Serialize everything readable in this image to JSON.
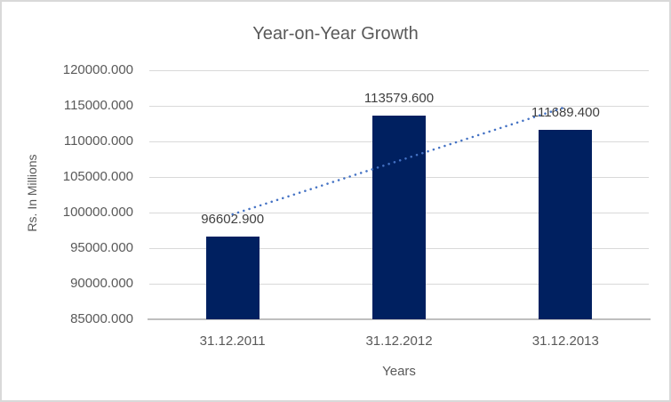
{
  "chart_data": {
    "type": "bar",
    "title": "Year-on-Year Growth",
    "xlabel": "Years",
    "ylabel": "Rs. In Millions",
    "categories": [
      "31.12.2011",
      "31.12.2012",
      "31.12.2013"
    ],
    "series": [
      {
        "name": "Rs. In Millions",
        "values": [
          96602.9,
          113579.6,
          111689.4
        ],
        "data_labels": [
          "96602.900",
          "113579.600",
          "111689.400"
        ]
      }
    ],
    "ylim": [
      85000,
      120000
    ],
    "ytick_step": 5000,
    "ytick_labels": [
      "120000.000",
      "115000.000",
      "110000.000",
      "105000.000",
      "100000.000",
      "95000.000",
      "90000.000",
      "85000.000"
    ],
    "grid": true,
    "legend": "none",
    "trendline": {
      "type": "linear",
      "style": "dotted"
    },
    "colors": {
      "bar": "#002060",
      "trendline": "#4472C4",
      "gridline": "#D9D9D9",
      "axis_line": "#BFBFBF",
      "text": "#595959",
      "data_label_text": "#404040",
      "background": "#FFFFFF",
      "border": "#D9D9D9"
    }
  }
}
